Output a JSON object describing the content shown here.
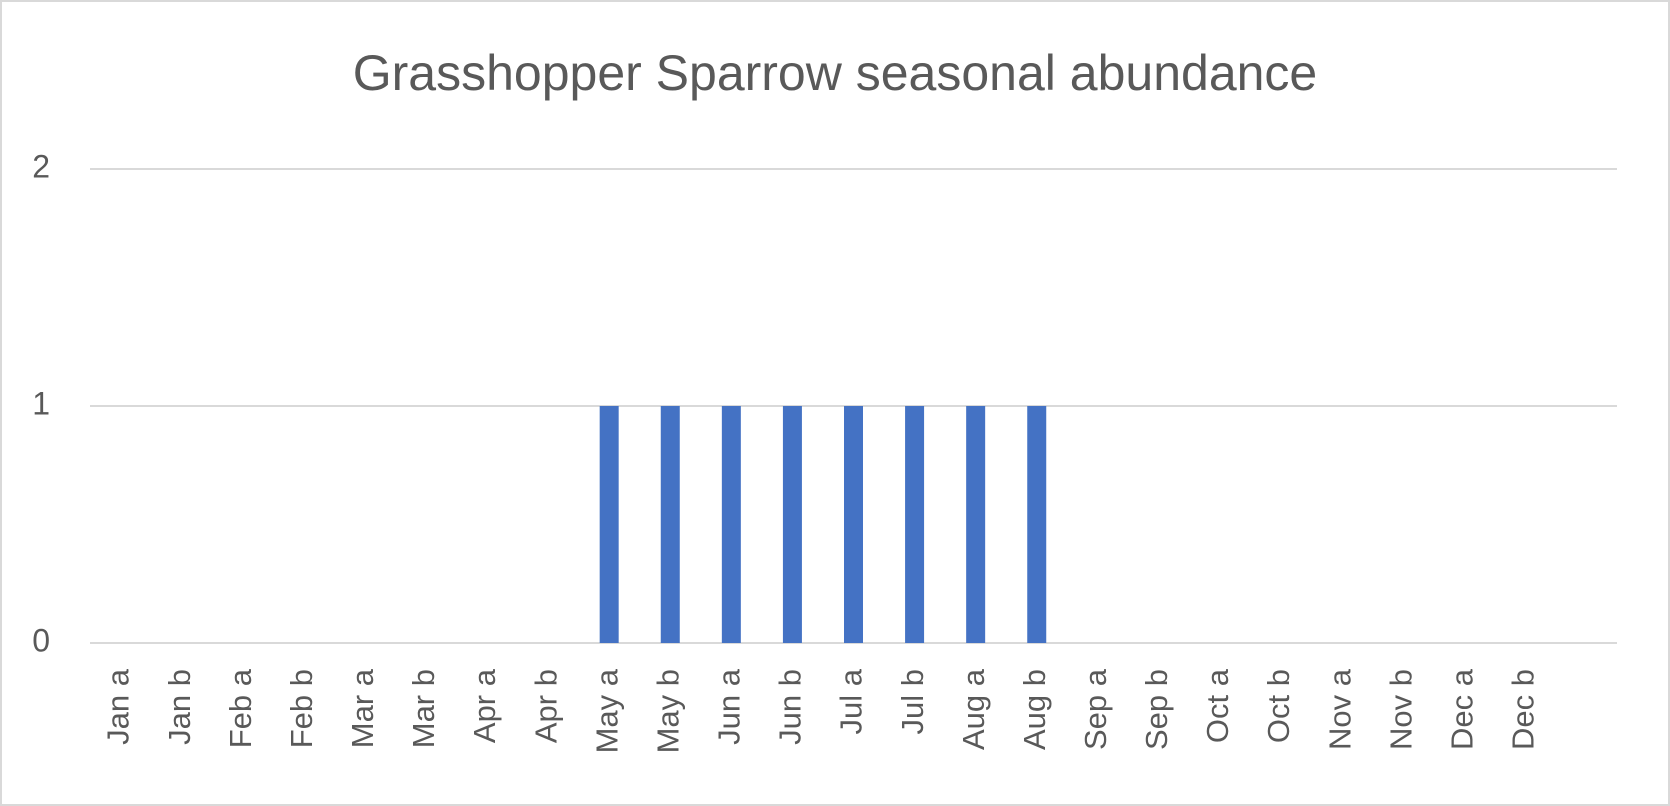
{
  "chart_data": {
    "type": "bar",
    "title": "Grasshopper Sparrow seasonal abundance",
    "categories": [
      "Jan a",
      "Jan b",
      "Feb a",
      "Feb b",
      "Mar a",
      "Mar b",
      "Apr a",
      "Apr b",
      "May a",
      "May b",
      "Jun a",
      "Jun b",
      "Jul a",
      "Jul b",
      "Aug a",
      "Aug b",
      "Sep a",
      "Sep b",
      "Oct a",
      "Oct b",
      "Nov a",
      "Nov b",
      "Dec a",
      "Dec b",
      null
    ],
    "values": [
      0,
      0,
      0,
      0,
      0,
      0,
      0,
      0,
      1,
      1,
      1,
      1,
      1,
      1,
      1,
      1,
      0,
      0,
      0,
      0,
      0,
      0,
      0,
      0,
      null
    ],
    "color": "#4472c4",
    "ylim": [
      0,
      2
    ],
    "yticks": [
      0,
      1,
      2
    ],
    "grid": true
  }
}
